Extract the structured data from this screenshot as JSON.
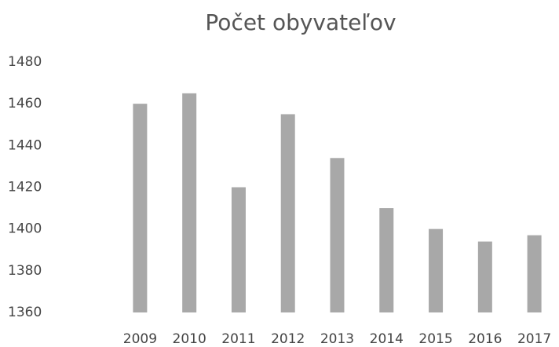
{
  "chart_data": {
    "type": "bar",
    "title": "Počet obyvateľov",
    "categories": [
      "2009",
      "2010",
      "2011",
      "2012",
      "2013",
      "2014",
      "2015",
      "2016",
      "2017"
    ],
    "values": [
      1460,
      1465,
      1420,
      1455,
      1434,
      1410,
      1400,
      1394,
      1397
    ],
    "color": "#a8a8a8",
    "ylim": [
      1360,
      1480
    ],
    "yticks": [
      1360,
      1380,
      1400,
      1420,
      1440,
      1460,
      1480
    ],
    "grid": false
  }
}
